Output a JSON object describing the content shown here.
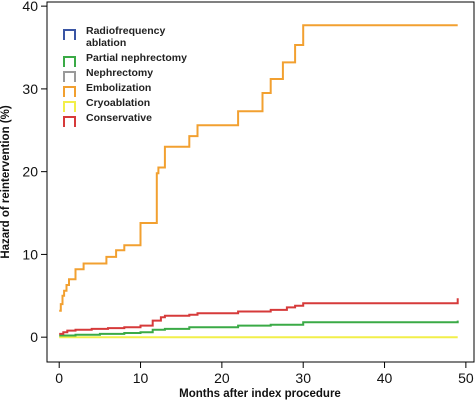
{
  "chart_data": {
    "type": "line",
    "title": "",
    "xlabel": "Months after index procedure",
    "ylabel": "Hazard of reintervention (%)",
    "xlim": [
      -1.5,
      51
    ],
    "ylim": [
      -3,
      40.5
    ],
    "xticks": [
      0,
      10,
      20,
      30,
      40,
      50
    ],
    "yticks": [
      0,
      10,
      20,
      30,
      40
    ],
    "grid": false,
    "legend_position": "top-left",
    "series": [
      {
        "name": "Radiofrequency ablation",
        "legend_lines": [
          "Radiofrequency",
          "ablation"
        ],
        "color": "#3a55a4",
        "points": []
      },
      {
        "name": "Partial nephrectomy",
        "color": "#3aaa46",
        "points": [
          [
            0,
            0.2
          ],
          [
            2,
            0.3
          ],
          [
            5,
            0.4
          ],
          [
            8,
            0.5
          ],
          [
            10,
            0.6
          ],
          [
            11.5,
            0.9
          ],
          [
            13,
            1.0
          ],
          [
            16,
            1.2
          ],
          [
            22,
            1.4
          ],
          [
            26,
            1.5
          ],
          [
            30,
            1.8
          ],
          [
            49,
            1.8
          ],
          [
            49,
            2.0
          ]
        ]
      },
      {
        "name": "Nephrectomy",
        "color": "#9a9a9a",
        "points": []
      },
      {
        "name": "Embolization",
        "color": "#f2a030",
        "points": [
          [
            0,
            3.2
          ],
          [
            0.2,
            4.0
          ],
          [
            0.4,
            5.0
          ],
          [
            0.6,
            5.6
          ],
          [
            0.9,
            6.3
          ],
          [
            1.2,
            7.0
          ],
          [
            2,
            8.2
          ],
          [
            3,
            8.9
          ],
          [
            5.8,
            9.7
          ],
          [
            7,
            10.5
          ],
          [
            8,
            11.1
          ],
          [
            10,
            13.8
          ],
          [
            12,
            19.8
          ],
          [
            12.2,
            20.5
          ],
          [
            13,
            23.0
          ],
          [
            16,
            24.3
          ],
          [
            17,
            25.6
          ],
          [
            22,
            27.3
          ],
          [
            25,
            29.5
          ],
          [
            26,
            31.2
          ],
          [
            27.5,
            33.2
          ],
          [
            29,
            35.3
          ],
          [
            30,
            37.7
          ],
          [
            49,
            37.7
          ]
        ]
      },
      {
        "name": "Cryoablation",
        "color": "#f2ef4a",
        "points": [
          [
            0,
            0
          ],
          [
            49,
            0
          ]
        ]
      },
      {
        "name": "Conservative",
        "color": "#d63a3a",
        "points": [
          [
            0,
            0.4
          ],
          [
            0.5,
            0.6
          ],
          [
            1,
            0.8
          ],
          [
            2,
            0.9
          ],
          [
            4,
            1.0
          ],
          [
            6,
            1.1
          ],
          [
            8,
            1.2
          ],
          [
            10,
            1.4
          ],
          [
            11.5,
            2.0
          ],
          [
            12.5,
            2.4
          ],
          [
            13,
            2.6
          ],
          [
            16,
            2.7
          ],
          [
            17,
            2.9
          ],
          [
            22,
            3.1
          ],
          [
            26,
            3.3
          ],
          [
            28,
            3.6
          ],
          [
            29,
            3.8
          ],
          [
            30,
            4.1
          ],
          [
            49,
            4.1
          ],
          [
            49,
            4.7
          ]
        ]
      }
    ]
  }
}
